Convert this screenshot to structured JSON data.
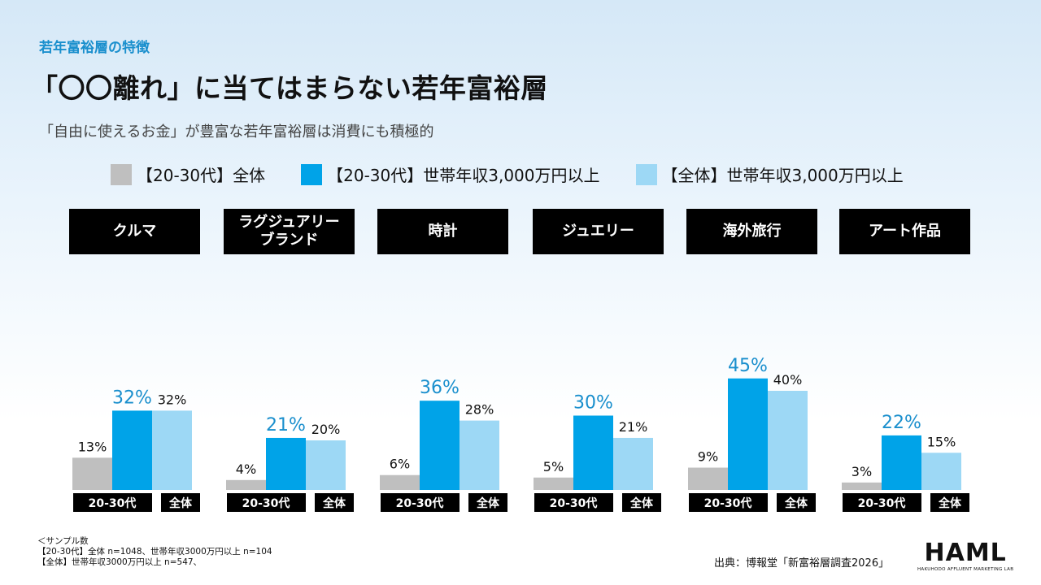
{
  "header": {
    "eyebrow": "若年富裕層の特徴",
    "title": "「〇〇離れ」に当てはまらない若年富裕層",
    "subtitle": "「自由に使えるお金」が豊富な若年富裕層は消費にも積極的"
  },
  "colors": {
    "gray": "#bfbfbf",
    "blue": "#00a3e8",
    "light_blue": "#9dd8f5",
    "accent_text": "#1a8fcd"
  },
  "chart_data": {
    "type": "bar",
    "legend": [
      "【20-30代】全体",
      "【20-30代】世帯年収3,000万円以上",
      "【全体】世帯年収3,000万円以上"
    ],
    "categories": [
      "クルマ",
      "ラグジュアリー\nブランド",
      "時計",
      "ジュエリー",
      "海外旅行",
      "アート作品"
    ],
    "series": [
      {
        "name": "【20-30代】全体",
        "values": [
          13,
          4,
          6,
          5,
          9,
          3
        ]
      },
      {
        "name": "【20-30代】世帯年収3,000万円以上",
        "values": [
          32,
          21,
          36,
          30,
          45,
          22
        ]
      },
      {
        "name": "【全体】世帯年収3,000万円以上",
        "values": [
          32,
          20,
          28,
          21,
          40,
          15
        ]
      }
    ],
    "group_labels": [
      "20-30代",
      "全体"
    ],
    "value_suffix": "%",
    "ylim": [
      0,
      50
    ]
  },
  "footnotes": [
    "＜サンプル数",
    "【20-30代】全体 n=1048、世帯年収3000万円以上 n=104",
    "【全体】世帯年収3000万円以上 n=547、"
  ],
  "source": "出典：博報堂「新富裕層調査2026」",
  "logo": {
    "main": "HAML",
    "sub": "HAKUHODO AFFLUENT MARKETING LAB"
  }
}
